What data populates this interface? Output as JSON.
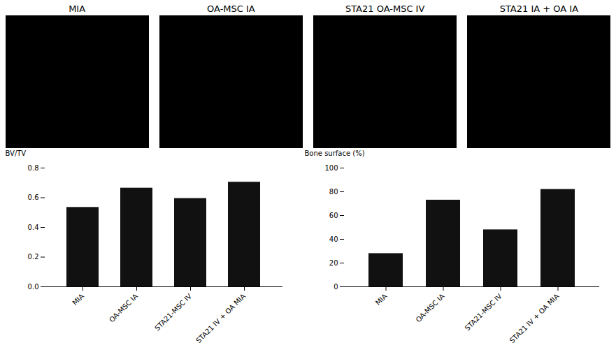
{
  "chart_data": [
    {
      "type": "image",
      "title": "MIA",
      "color": "#000000"
    },
    {
      "type": "image",
      "title": "OA-MSC IA",
      "color": "#000000"
    },
    {
      "type": "image",
      "title": "STA21 OA-MSC IV",
      "color": "#000000"
    },
    {
      "type": "image",
      "title": "STA21 IA + OA IA",
      "color": "#000000"
    },
    {
      "type": "bar",
      "ylabel": "BV/TV",
      "categories": [
        "MIA",
        "OA-MSC IA",
        "STA21-MSC IV",
        "STA21 IV + OA MIA"
      ],
      "values": [
        0.535,
        0.665,
        0.595,
        0.705
      ],
      "color": "#111111",
      "ylim": [
        0,
        0.8
      ],
      "yticks": [
        {
          "value": 0,
          "label": "0.0"
        },
        0.2,
        0.4,
        0.6,
        0.8
      ],
      "grid": false
    },
    {
      "type": "bar",
      "ylabel": "Bone surface (%)",
      "categories": [
        "MIA",
        "OA-MSC IA",
        "STA21-MSC IV",
        "STA21 IV + OA MIA"
      ],
      "values": [
        28,
        73,
        48,
        82
      ],
      "color": "#111111",
      "ylim": [
        0,
        100
      ],
      "yticks": [
        0,
        20,
        40,
        60,
        80,
        100
      ],
      "grid": false
    }
  ]
}
